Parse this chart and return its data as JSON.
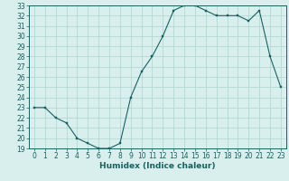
{
  "x": [
    0,
    1,
    2,
    3,
    4,
    5,
    6,
    7,
    8,
    9,
    10,
    11,
    12,
    13,
    14,
    15,
    16,
    17,
    18,
    19,
    20,
    21,
    22,
    23
  ],
  "y": [
    23,
    23,
    22,
    21.5,
    20,
    19.5,
    19,
    19,
    19.5,
    24,
    26.5,
    28,
    30,
    32.5,
    33,
    33,
    32.5,
    32,
    32,
    32,
    31.5,
    32.5,
    28,
    25
  ],
  "xlabel": "Humidex (Indice chaleur)",
  "xlim": [
    -0.5,
    23.5
  ],
  "ylim": [
    19,
    33
  ],
  "yticks": [
    19,
    20,
    21,
    22,
    23,
    24,
    25,
    26,
    27,
    28,
    29,
    30,
    31,
    32,
    33
  ],
  "xticks": [
    0,
    1,
    2,
    3,
    4,
    5,
    6,
    7,
    8,
    9,
    10,
    11,
    12,
    13,
    14,
    15,
    16,
    17,
    18,
    19,
    20,
    21,
    22,
    23
  ],
  "line_color": "#1a6060",
  "bg_color": "#d8efed",
  "grid_color": "#aed4d0",
  "axis_color": "#1a6060",
  "label_fontsize": 6.5,
  "tick_fontsize": 5.5
}
